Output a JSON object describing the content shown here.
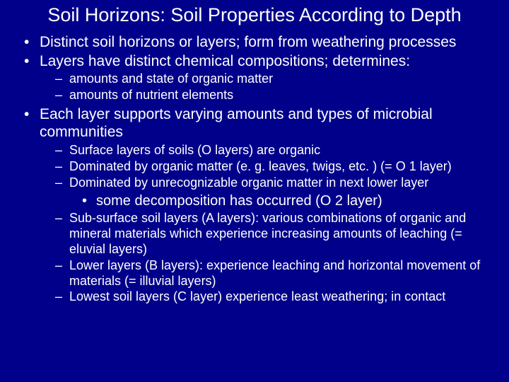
{
  "colors": {
    "background": "#00008b",
    "text": "#ffffff"
  },
  "title": "Soil Horizons:  Soil Properties According to Depth",
  "b1": "Distinct soil horizons or layers; form from weathering processes",
  "b2": "Layers have distinct chemical compositions; determines:",
  "b2a": " amounts and state of  organic matter",
  "b2b": "amounts of nutrient elements",
  "b3": "Each layer supports varying amounts and types of microbial communities",
  "b3a": "Surface layers of soils (O layers) are organic",
  "b3b": "Dominated by organic matter (e. g. leaves, twigs, etc. ) (= O 1 layer)",
  "b3c": "Dominated by unrecognizable organic matter in next lower layer",
  "b3c1": "some decomposition has occurred (O 2 layer)",
  "b3d": "Sub-surface soil layers (A layers):  various combinations of organic and mineral materials which experience increasing amounts of leaching (= eluvial layers)",
  "b3e": "Lower layers (B layers): experience leaching and horizontal movement of materials (= illuvial layers)",
  "b3f": "Lowest soil layers (C layer) experience least weathering; in contact"
}
